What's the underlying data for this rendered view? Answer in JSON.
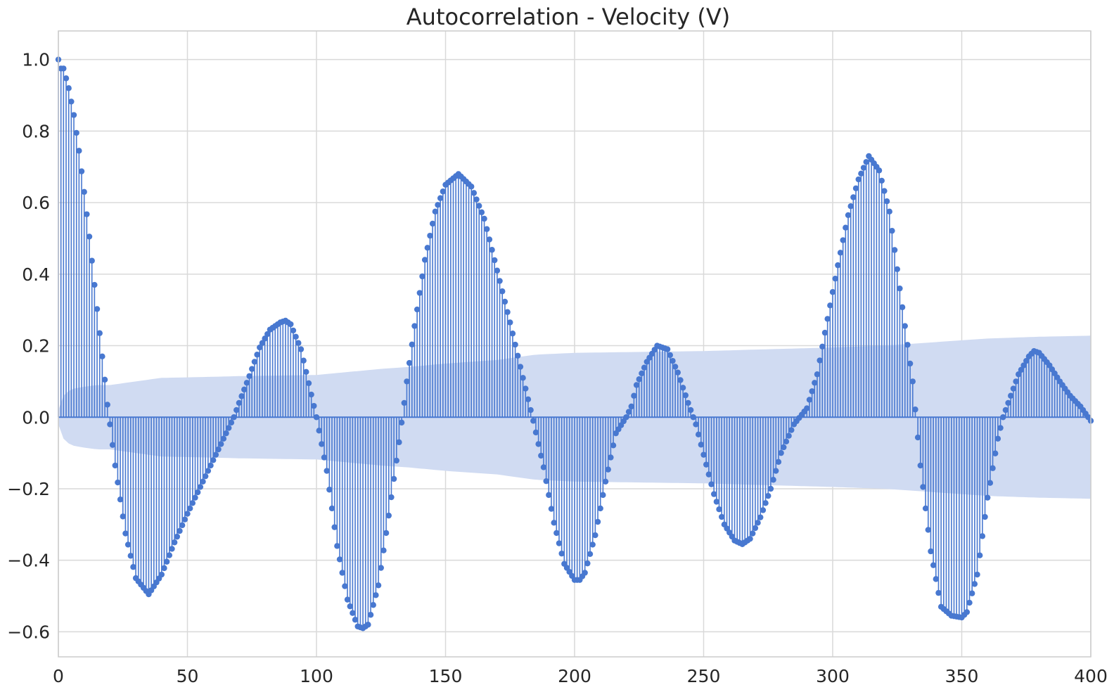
{
  "chart_data": {
    "type": "stem",
    "title": "Autocorrelation - Velocity (V)",
    "xlabel": "",
    "ylabel": "",
    "xlim": [
      0,
      400
    ],
    "ylim": [
      -0.67,
      1.08
    ],
    "grid": true,
    "x_ticks": [
      0,
      50,
      100,
      150,
      200,
      250,
      300,
      350,
      400
    ],
    "x_tick_labels": [
      "0",
      "50",
      "100",
      "150",
      "200",
      "250",
      "300",
      "350",
      "400"
    ],
    "y_ticks": [
      1.0,
      0.8,
      0.6,
      0.4,
      0.2,
      0.0,
      -0.2,
      -0.4,
      -0.6
    ],
    "y_tick_labels": [
      "1.0",
      "0.8",
      "0.6",
      "0.4",
      "0.2",
      "0.0",
      "−0.2",
      "−0.4",
      "−0.6"
    ],
    "series_color": "#4878d0",
    "band_color": "#d0dbf2",
    "lags_range": [
      0,
      400
    ],
    "acf_keypoints": {
      "lag": [
        0,
        1,
        2,
        4,
        6,
        8,
        10,
        12,
        14,
        16,
        18,
        19,
        20,
        22,
        26,
        30,
        35,
        40,
        45,
        50,
        56,
        62,
        68,
        70,
        74,
        78,
        82,
        86,
        88,
        90,
        94,
        97,
        100,
        104,
        108,
        112,
        116,
        118,
        120,
        124,
        128,
        132,
        134,
        135,
        138,
        142,
        146,
        150,
        155,
        160,
        165,
        170,
        175,
        180,
        182,
        184,
        188,
        192,
        196,
        200,
        202,
        204,
        208,
        212,
        216,
        220,
        222,
        224,
        228,
        232,
        236,
        240,
        244,
        247,
        250,
        254,
        258,
        262,
        265,
        268,
        272,
        276,
        280,
        285,
        290,
        294,
        298,
        302,
        306,
        310,
        314,
        318,
        322,
        326,
        330,
        331,
        334,
        338,
        342,
        346,
        350,
        352,
        356,
        360,
        364,
        366,
        368,
        372,
        376,
        378,
        380,
        384,
        388,
        392,
        396,
        400
      ],
      "acf": [
        1.0,
        0.975,
        0.975,
        0.92,
        0.845,
        0.745,
        0.63,
        0.505,
        0.37,
        0.235,
        0.105,
        0.035,
        -0.02,
        -0.135,
        -0.325,
        -0.45,
        -0.495,
        -0.44,
        -0.35,
        -0.27,
        -0.18,
        -0.09,
        0.0,
        0.04,
        0.115,
        0.195,
        0.245,
        0.265,
        0.27,
        0.26,
        0.19,
        0.095,
        0.0,
        -0.15,
        -0.36,
        -0.51,
        -0.585,
        -0.59,
        -0.58,
        -0.47,
        -0.275,
        -0.07,
        0.04,
        0.1,
        0.255,
        0.44,
        0.575,
        0.65,
        0.68,
        0.645,
        0.555,
        0.41,
        0.265,
        0.11,
        0.05,
        -0.01,
        -0.14,
        -0.295,
        -0.41,
        -0.455,
        -0.455,
        -0.435,
        -0.33,
        -0.18,
        -0.045,
        0.0,
        0.03,
        0.09,
        0.155,
        0.2,
        0.19,
        0.125,
        0.04,
        -0.02,
        -0.105,
        -0.215,
        -0.3,
        -0.345,
        -0.355,
        -0.34,
        -0.28,
        -0.2,
        -0.1,
        -0.02,
        0.025,
        0.12,
        0.275,
        0.425,
        0.565,
        0.665,
        0.73,
        0.69,
        0.575,
        0.36,
        0.15,
        0.1,
        -0.135,
        -0.375,
        -0.53,
        -0.555,
        -0.56,
        -0.545,
        -0.44,
        -0.225,
        -0.06,
        0.0,
        0.04,
        0.12,
        0.17,
        0.185,
        0.18,
        0.145,
        0.1,
        0.06,
        0.03,
        -0.01
      ]
    },
    "confidence_band_keypoints": {
      "lag": [
        0,
        1,
        3,
        6,
        10,
        15,
        20,
        30,
        40,
        60,
        70,
        90,
        100,
        110,
        125,
        135,
        150,
        170,
        185,
        200,
        250,
        300,
        320,
        330,
        340,
        360,
        380,
        400
      ],
      "upper": [
        0.02,
        0.05,
        0.07,
        0.08,
        0.085,
        0.09,
        0.09,
        0.1,
        0.11,
        0.113,
        0.115,
        0.117,
        0.118,
        0.125,
        0.135,
        0.14,
        0.15,
        0.16,
        0.175,
        0.18,
        0.185,
        0.195,
        0.2,
        0.205,
        0.21,
        0.22,
        0.225,
        0.228
      ]
    }
  }
}
